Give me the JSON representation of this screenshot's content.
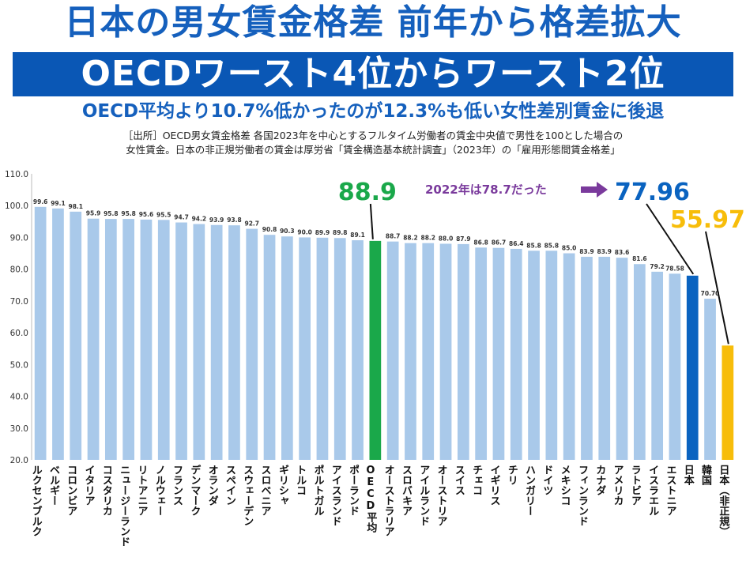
{
  "header": {
    "title": "日本の男女賃金格差 前年から格差拡大",
    "banner": "OECDワースト4位からワースト2位",
    "subtitle": "OECD平均より10.7%低かったのが12.3%も低い女性差別賃金に後退",
    "note_line1": "［出所］OECD男女賃金格差 各国2023年を中心とするフルタイム労働者の賃金中央値で男性を100とした場合の",
    "note_line2": "女性賃金。日本の非正規労働者の賃金は厚労省「賃金構造基本統計調査」（2023年）の「雇用形態間賃金格差」"
  },
  "colors": {
    "bar": "#a9c9ea",
    "oecd": "#1aa84a",
    "japan": "#0a63c0",
    "nonregular": "#f7bd0a",
    "title": "#1560bd",
    "annotation": "#7a3a9c"
  },
  "chart_data": {
    "type": "bar",
    "ylim": [
      20,
      110
    ],
    "yticks": [
      "20.0",
      "30.0",
      "40.0",
      "50.0",
      "60.0",
      "70.0",
      "80.0",
      "90.0",
      "100.0",
      "110.0"
    ],
    "categories": [
      "ルクセンブルク",
      "ベルギー",
      "コロンビア",
      "イタリア",
      "コスタリカ",
      "ニュージーランド",
      "リトアニア",
      "ノルウェー",
      "フランス",
      "デンマーク",
      "オランダ",
      "スペイン",
      "スウェーデン",
      "スロベニア",
      "ギリシャ",
      "トルコ",
      "ポルトガル",
      "アイスランド",
      "ポーランド",
      "OECD平均",
      "オーストラリア",
      "スロバキア",
      "アイルランド",
      "オーストリア",
      "スイス",
      "チェコ",
      "イギリス",
      "チリ",
      "ハンガリー",
      "ドイツ",
      "メキシコ",
      "フィンランド",
      "カナダ",
      "アメリカ",
      "ラトビア",
      "イスラエル",
      "エストニア",
      "日本",
      "韓国",
      "日本（非正規）"
    ],
    "values": [
      99.6,
      99.1,
      98.1,
      95.9,
      95.8,
      95.8,
      95.6,
      95.5,
      94.7,
      94.2,
      93.9,
      93.8,
      92.7,
      90.8,
      90.3,
      90.0,
      89.9,
      89.8,
      89.1,
      88.9,
      88.7,
      88.2,
      88.2,
      88.0,
      87.9,
      86.8,
      86.7,
      86.4,
      85.8,
      85.8,
      85.0,
      83.9,
      83.9,
      83.6,
      81.6,
      79.2,
      78.58,
      77.96,
      70.7,
      55.97
    ],
    "value_labels": [
      "99.6",
      "99.1",
      "98.1",
      "95.9",
      "95.8",
      "95.8",
      "95.6",
      "95.5",
      "94.7",
      "94.2",
      "93.9",
      "93.8",
      "92.7",
      "90.8",
      "90.3",
      "90.0",
      "89.9",
      "89.8",
      "89.1",
      "88.9",
      "88.7",
      "88.2",
      "88.2",
      "88.0",
      "87.9",
      "86.8",
      "86.7",
      "86.4",
      "85.8",
      "85.8",
      "85.0",
      "83.9",
      "83.9",
      "83.6",
      "81.6",
      "79.2",
      "78.58",
      "77.96",
      "70.70",
      "55.97"
    ],
    "highlights": {
      "OECD平均": "oecd",
      "日本": "japan",
      "日本（非正規）": "nonregular"
    },
    "annotations": {
      "oecd_value": "88.9",
      "japan_value": "77.96",
      "nonregular_value": "55.97",
      "japan_2022_note": "2022年は78.7だった"
    }
  }
}
